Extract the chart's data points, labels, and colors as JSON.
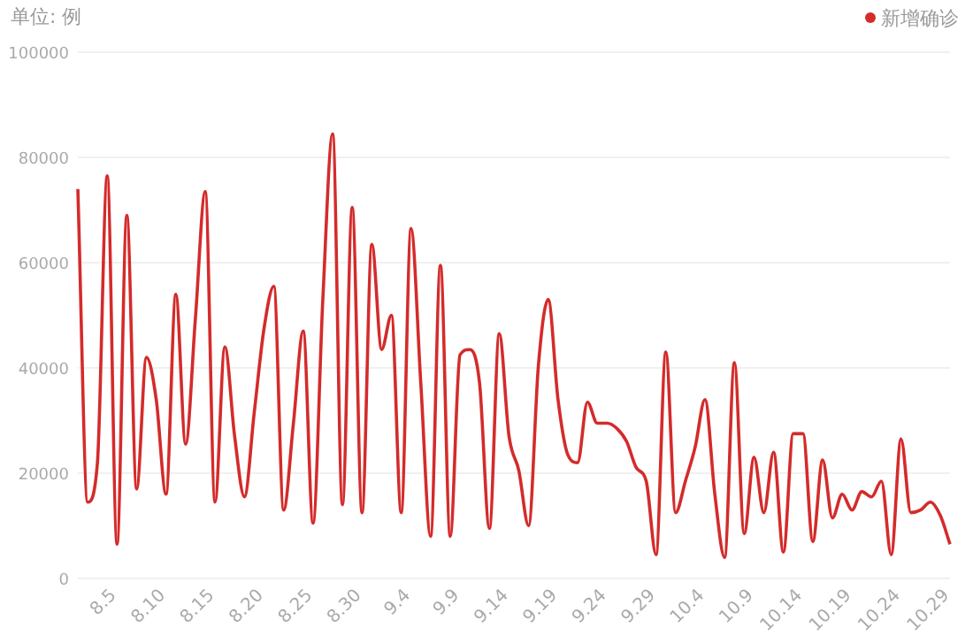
{
  "chart_data": {
    "type": "line",
    "ylabel": "单位: 例",
    "categories": [
      null,
      null,
      null,
      null,
      "8.5",
      null,
      null,
      null,
      null,
      "8.10",
      null,
      null,
      null,
      null,
      "8.15",
      null,
      null,
      null,
      null,
      "8.20",
      null,
      null,
      null,
      null,
      "8.25",
      null,
      null,
      null,
      null,
      "8.30",
      null,
      null,
      null,
      null,
      "9.4",
      null,
      null,
      null,
      null,
      "9.9",
      null,
      null,
      null,
      null,
      "9.14",
      null,
      null,
      null,
      null,
      "9.19",
      null,
      null,
      null,
      null,
      "9.24",
      null,
      null,
      null,
      null,
      "9.29",
      null,
      null,
      null,
      null,
      "10.4",
      null,
      null,
      null,
      null,
      "10.9",
      null,
      null,
      null,
      null,
      "10.14",
      null,
      null,
      null,
      null,
      "10.19",
      null,
      null,
      null,
      null,
      "10.24",
      null,
      null,
      null,
      null,
      "10.29"
    ],
    "series": [
      {
        "name": "新增确诊",
        "color": "#d42b2b",
        "values": [
          74000,
          14500,
          22000,
          76500,
          6500,
          69000,
          17000,
          42000,
          34000,
          16000,
          54000,
          25500,
          49500,
          73500,
          14500,
          44000,
          27000,
          15500,
          31500,
          47500,
          55500,
          13000,
          29500,
          47000,
          10500,
          53000,
          84500,
          14000,
          70500,
          12500,
          63500,
          43500,
          50000,
          12500,
          66500,
          37000,
          8000,
          59500,
          8000,
          42500,
          43500,
          37000,
          9500,
          46500,
          27000,
          20500,
          10000,
          40500,
          53000,
          34000,
          23500,
          22000,
          33500,
          29500,
          29500,
          28500,
          26000,
          21000,
          18500,
          4500,
          43000,
          12500,
          18500,
          25000,
          34000,
          16000,
          4000,
          41000,
          8500,
          23000,
          12500,
          24000,
          5000,
          27500,
          27500,
          7000,
          22500,
          11500,
          16000,
          13000,
          16500,
          15500,
          18500,
          4500,
          26500,
          12500,
          13000,
          14500,
          12000,
          6500
        ]
      }
    ],
    "ylim": [
      0,
      100000
    ],
    "yticks": [
      0,
      20000,
      40000,
      60000,
      80000,
      100000
    ],
    "grid": "y",
    "legend": "top right"
  }
}
